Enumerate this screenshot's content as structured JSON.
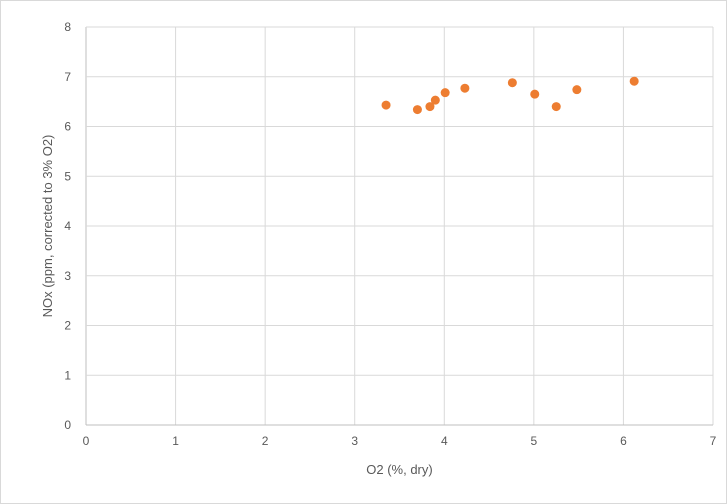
{
  "chart_data": {
    "type": "scatter",
    "title": "",
    "xlabel": "O2 (%, dry)",
    "ylabel": "NOx (ppm, corrected to 3% O2)",
    "xlim": [
      0,
      7
    ],
    "ylim": [
      0,
      8
    ],
    "x_ticks": [
      "0",
      "1",
      "2",
      "3",
      "4",
      "5",
      "6",
      "7"
    ],
    "y_ticks": [
      "0",
      "1",
      "2",
      "3",
      "4",
      "5",
      "6",
      "7",
      "8"
    ],
    "grid": true,
    "legend": "none",
    "marker_color": "#ED7D31",
    "series": [
      {
        "points": [
          {
            "x": 3.35,
            "y": 6.43
          },
          {
            "x": 3.7,
            "y": 6.34
          },
          {
            "x": 3.84,
            "y": 6.4
          },
          {
            "x": 3.9,
            "y": 6.53
          },
          {
            "x": 4.01,
            "y": 6.68
          },
          {
            "x": 4.23,
            "y": 6.77
          },
          {
            "x": 4.76,
            "y": 6.88
          },
          {
            "x": 5.01,
            "y": 6.65
          },
          {
            "x": 5.25,
            "y": 6.4
          },
          {
            "x": 5.48,
            "y": 6.74
          },
          {
            "x": 6.12,
            "y": 6.91
          }
        ]
      }
    ]
  }
}
